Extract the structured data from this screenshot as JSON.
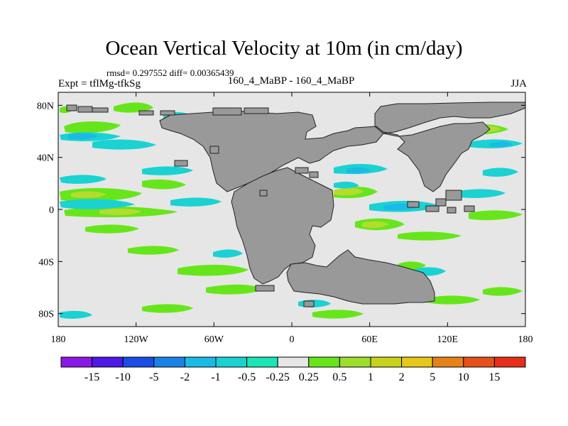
{
  "title": "Ocean Vertical Velocity at 10m (in cm/day)",
  "stats": "rmsd= 0.297552 diff= 0.00365439",
  "expt": "Expt = tflMg-tfkSg",
  "subtitle": "160_4_MaBP - 160_4_MaBP",
  "season": "JJA",
  "map": {
    "lon_range": [
      -180,
      180
    ],
    "lat_range": [
      -90,
      90
    ],
    "lat_ticks": [
      {
        "value": 80,
        "label": "80N"
      },
      {
        "value": 40,
        "label": "40N"
      },
      {
        "value": 0,
        "label": "0"
      },
      {
        "value": -40,
        "label": "40S"
      },
      {
        "value": -80,
        "label": "80S"
      }
    ],
    "lon_ticks": [
      {
        "value": -180,
        "label": "180"
      },
      {
        "value": -120,
        "label": "120W"
      },
      {
        "value": -60,
        "label": "60W"
      },
      {
        "value": 0,
        "label": "0"
      },
      {
        "value": 60,
        "label": "60E"
      },
      {
        "value": 120,
        "label": "120E"
      },
      {
        "value": 180,
        "label": "180"
      }
    ],
    "colors": {
      "ocean_background": "#e6e6e6",
      "land": "#999999",
      "positive_small": "#66e61a",
      "positive_mid": "#b3dc2e",
      "negative_small": "#1ad2d2",
      "negative_mid": "#19bbe6"
    }
  },
  "colorbar": {
    "labels": [
      "-15",
      "-10",
      "-5",
      "-2",
      "-1",
      "-0.5",
      "-0.25",
      "0.25",
      "0.5",
      "1",
      "2",
      "5",
      "10",
      "15"
    ],
    "colors": [
      "#8a19e6",
      "#4c19e6",
      "#1a4ce6",
      "#1a82e6",
      "#19bbe6",
      "#1ad2d2",
      "#19e6b4",
      "#e6e6e6",
      "#66e61a",
      "#9edc2e",
      "#c8d21a",
      "#e6c819",
      "#e6821a",
      "#e65019",
      "#e62e1a"
    ]
  }
}
